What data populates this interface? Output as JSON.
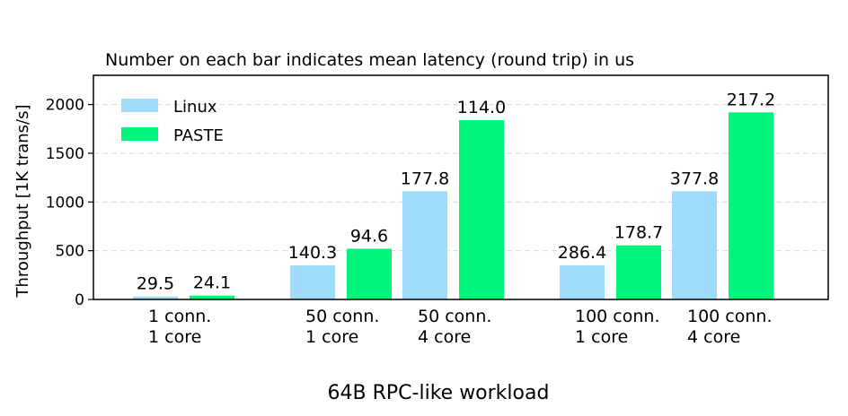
{
  "chart_data": {
    "type": "bar",
    "title": "Number on each bar indicates mean latency (round trip) in us",
    "xlabel": "64B RPC-like workload",
    "ylabel": "Throughput [1K trans/s]",
    "ylim": [
      0,
      2300
    ],
    "yticks": [
      0,
      500,
      1000,
      1500,
      2000
    ],
    "grid": true,
    "legend_position": "top-left",
    "groups": [
      {
        "categories": [
          {
            "line1": "1 conn.",
            "line2": "1 core"
          }
        ]
      },
      {
        "categories": [
          {
            "line1": "50 conn.",
            "line2": "1 core"
          },
          {
            "line1": "50 conn.",
            "line2": "4 core"
          }
        ]
      },
      {
        "categories": [
          {
            "line1": "100 conn.",
            "line2": "1 core"
          },
          {
            "line1": "100 conn.",
            "line2": "4 core"
          }
        ]
      }
    ],
    "series": [
      {
        "name": "Linux",
        "color": "#9fdcfc",
        "values": [
          30,
          350,
          1110,
          350,
          1110
        ],
        "labels": [
          "29.5",
          "140.3",
          "177.8",
          "286.4",
          "377.8"
        ]
      },
      {
        "name": "PASTE",
        "color": "#00f57a",
        "values": [
          40,
          520,
          1840,
          555,
          1920
        ],
        "labels": [
          "24.1",
          "94.6",
          "114.0",
          "178.7",
          "217.2"
        ]
      }
    ]
  }
}
